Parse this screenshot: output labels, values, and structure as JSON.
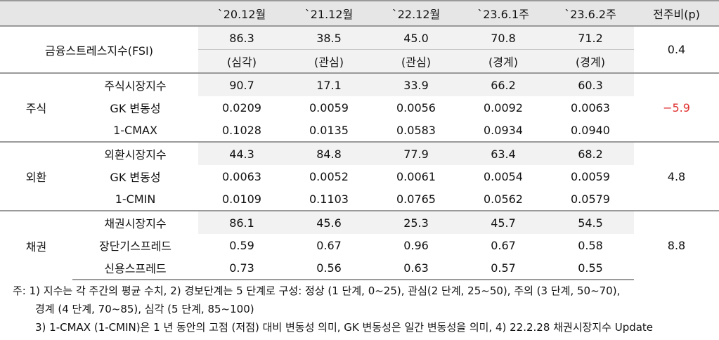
{
  "header": {
    "category": "",
    "subcategory": "",
    "columns": [
      "`20.12월",
      "`21.12월",
      "`22.12월",
      "`23.6.1주",
      "`23.6.2주",
      "전주비(p)"
    ]
  },
  "fsi": {
    "label": "금융스트레스지수(FSI)",
    "values": [
      "86.3",
      "38.5",
      "45.0",
      "70.8",
      "71.2"
    ],
    "levels": [
      "(심각)",
      "(관심)",
      "(관심)",
      "(경계)",
      "(경계)"
    ],
    "change": "0.4"
  },
  "groups": [
    {
      "name": "주식",
      "change": "−5.9",
      "rows": [
        {
          "label": "주식시장지수",
          "values": [
            "90.7",
            "17.1",
            "33.9",
            "66.2",
            "60.3"
          ]
        },
        {
          "label": "GK 변동성",
          "values": [
            "0.0209",
            "0.0059",
            "0.0056",
            "0.0092",
            "0.0063"
          ]
        },
        {
          "label": "1-CMAX",
          "values": [
            "0.1028",
            "0.0135",
            "0.0583",
            "0.0934",
            "0.0940"
          ]
        }
      ]
    },
    {
      "name": "외환",
      "change": "4.8",
      "rows": [
        {
          "label": "외환시장지수",
          "values": [
            "44.3",
            "84.8",
            "77.9",
            "63.4",
            "68.2"
          ]
        },
        {
          "label": "GK 변동성",
          "values": [
            "0.0063",
            "0.0052",
            "0.0061",
            "0.0054",
            "0.0059"
          ]
        },
        {
          "label": "1-CMIN",
          "values": [
            "0.0109",
            "0.1103",
            "0.0765",
            "0.0562",
            "0.0579"
          ]
        }
      ]
    },
    {
      "name": "채권",
      "change": "8.8",
      "rows": [
        {
          "label": "채권시장지수",
          "values": [
            "86.1",
            "45.6",
            "25.3",
            "45.7",
            "54.5"
          ]
        },
        {
          "label": "장단기스프레드",
          "values": [
            "0.59",
            "0.67",
            "0.96",
            "0.67",
            "0.58"
          ]
        },
        {
          "label": "신용스프레드",
          "values": [
            "0.73",
            "0.56",
            "0.63",
            "0.57",
            "0.55"
          ]
        }
      ]
    }
  ],
  "notes": [
    "주: 1) 지수는 각 주간의 평균 수치, 2) 경보단계는 5 단계로 구성: 정상 (1 단계, 0~25), 관심(2 단계, 25~50), 주의 (3 단계, 50~70),",
    "경계 (4 단계, 70~85), 심각 (5 단계, 85~100)",
    "3) 1-CMAX (1-CMIN)은 1 년 동안의 고점 (저점) 대비 변동성 의미, GK 변동성은 일간 변동성을 의미, 4) 22.2.28 채권시장지수 Update"
  ],
  "colors": {
    "header_bg": "#e6e6e6",
    "shade_bg": "#f2f2f2",
    "negative": "#e03030",
    "rule": "#9a9a9a"
  }
}
